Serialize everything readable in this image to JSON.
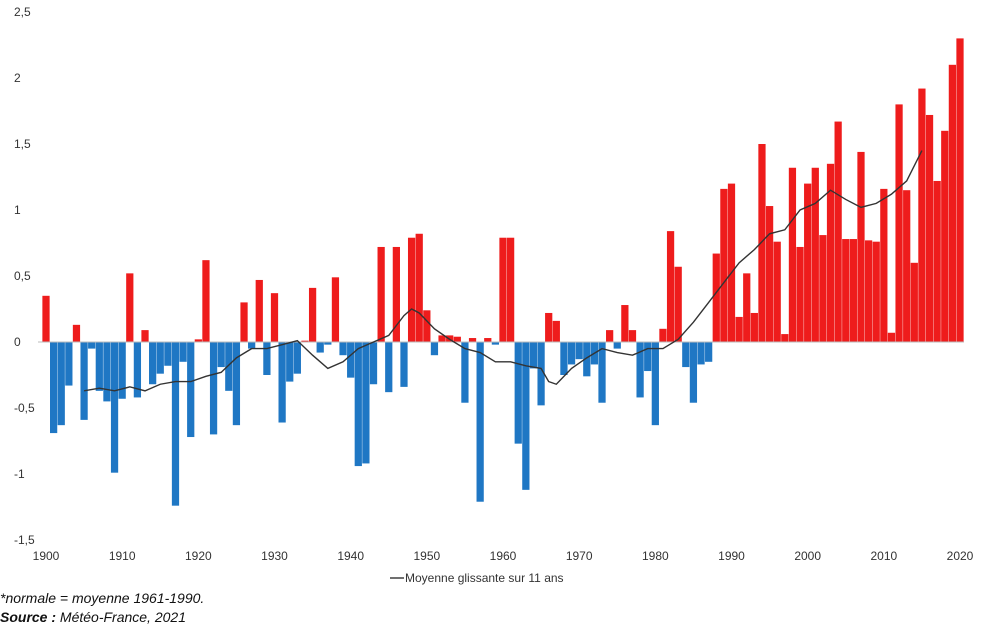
{
  "colors": {
    "positive": "#ee1c1c",
    "negative": "#1f77c4",
    "line": "#333333"
  },
  "notes": {
    "normale": "*normale = moyenne 1961-1990.",
    "source_label": "Source :",
    "source_value": " Météo-France, 2021"
  },
  "chart_data": {
    "type": "bar",
    "title": "",
    "xlabel": "",
    "ylabel": "",
    "xlim": [
      1900,
      2020
    ],
    "ylim": [
      -1.5,
      2.5
    ],
    "grid": false,
    "legend_position": "bottom",
    "x_ticks": [
      "1900",
      "1910",
      "1920",
      "1930",
      "1940",
      "1950",
      "1960",
      "1970",
      "1980",
      "1990",
      "2000",
      "2010",
      "2020"
    ],
    "y_ticks": [
      "2,5",
      "2",
      "1,5",
      "1",
      "0,5",
      "0",
      "-0,5",
      "-1",
      "-1,5"
    ],
    "years": [
      1900,
      1901,
      1902,
      1903,
      1904,
      1905,
      1906,
      1907,
      1908,
      1909,
      1910,
      1911,
      1912,
      1913,
      1914,
      1915,
      1916,
      1917,
      1918,
      1919,
      1920,
      1921,
      1922,
      1923,
      1924,
      1925,
      1926,
      1927,
      1928,
      1929,
      1930,
      1931,
      1932,
      1933,
      1934,
      1935,
      1936,
      1937,
      1938,
      1939,
      1940,
      1941,
      1942,
      1943,
      1944,
      1945,
      1946,
      1947,
      1948,
      1949,
      1950,
      1951,
      1952,
      1953,
      1954,
      1955,
      1956,
      1957,
      1958,
      1959,
      1960,
      1961,
      1962,
      1963,
      1964,
      1965,
      1966,
      1967,
      1968,
      1969,
      1970,
      1971,
      1972,
      1973,
      1974,
      1975,
      1976,
      1977,
      1978,
      1979,
      1980,
      1981,
      1982,
      1983,
      1984,
      1985,
      1986,
      1987,
      1988,
      1989,
      1990,
      1991,
      1992,
      1993,
      1994,
      1995,
      1996,
      1997,
      1998,
      1999,
      2000,
      2001,
      2002,
      2003,
      2004,
      2005,
      2006,
      2007,
      2008,
      2009,
      2010,
      2011,
      2012,
      2013,
      2014,
      2015,
      2016,
      2017,
      2018,
      2019,
      2020
    ],
    "series": [
      {
        "values": [
          0.35,
          -0.69,
          -0.63,
          -0.33,
          0.13,
          -0.59,
          -0.05,
          -0.37,
          -0.45,
          -0.99,
          -0.43,
          0.52,
          -0.42,
          0.09,
          -0.32,
          -0.24,
          -0.18,
          -1.24,
          -0.15,
          -0.72,
          0.02,
          0.62,
          -0.7,
          -0.19,
          -0.37,
          -0.63,
          0.3,
          -0.05,
          0.47,
          -0.25,
          0.37,
          -0.61,
          -0.3,
          -0.24,
          0.01,
          0.41,
          -0.08,
          -0.02,
          0.49,
          -0.1,
          -0.27,
          -0.94,
          -0.92,
          -0.32,
          0.72,
          -0.38,
          0.72,
          -0.34,
          0.79,
          0.82,
          0.24,
          -0.1,
          0.05,
          0.05,
          0.04,
          -0.46,
          0.03,
          -1.21,
          0.03,
          -0.02,
          0.79,
          0.79,
          -0.77,
          -1.12,
          -0.2,
          -0.48,
          0.22,
          0.16,
          -0.25,
          -0.17,
          -0.13,
          -0.26,
          -0.17,
          -0.46,
          0.09,
          -0.05,
          0.28,
          0.09,
          -0.42,
          -0.22,
          -0.63,
          0.1,
          0.84,
          0.57,
          -0.19,
          -0.46,
          -0.17,
          -0.15,
          0.67,
          1.16,
          1.2,
          0.19,
          0.52,
          0.22,
          1.5,
          1.03,
          0.76,
          0.06,
          1.32,
          0.72,
          1.2,
          1.32,
          0.81,
          1.35,
          1.67,
          0.78,
          0.78,
          1.44,
          0.77,
          0.76,
          1.16,
          0.07,
          1.8,
          1.15,
          0.6,
          1.92,
          1.72,
          1.22,
          1.6,
          2.1,
          2.3
        ]
      },
      {
        "name": "Moyenne glissante sur 11 ans",
        "type": "line",
        "x": [
          1905,
          1907,
          1909,
          1911,
          1913,
          1915,
          1917,
          1919,
          1921,
          1923,
          1925,
          1927,
          1929,
          1931,
          1933,
          1935,
          1937,
          1939,
          1941,
          1943,
          1945,
          1947,
          1948,
          1949,
          1951,
          1953,
          1955,
          1957,
          1959,
          1961,
          1963,
          1965,
          1966,
          1967,
          1969,
          1971,
          1973,
          1975,
          1977,
          1979,
          1981,
          1983,
          1985,
          1987,
          1989,
          1991,
          1993,
          1995,
          1997,
          1999,
          2001,
          2003,
          2005,
          2007,
          2009,
          2011,
          2013,
          2015
        ],
        "values": [
          -0.37,
          -0.35,
          -0.37,
          -0.34,
          -0.37,
          -0.32,
          -0.3,
          -0.3,
          -0.26,
          -0.23,
          -0.12,
          -0.05,
          -0.05,
          -0.02,
          0.01,
          -0.1,
          -0.2,
          -0.15,
          -0.05,
          0.0,
          0.05,
          0.2,
          0.25,
          0.22,
          0.1,
          0.02,
          -0.05,
          -0.08,
          -0.15,
          -0.15,
          -0.18,
          -0.2,
          -0.3,
          -0.32,
          -0.2,
          -0.12,
          -0.05,
          -0.08,
          -0.1,
          -0.05,
          -0.05,
          0.02,
          0.15,
          0.3,
          0.45,
          0.6,
          0.7,
          0.82,
          0.85,
          1.0,
          1.05,
          1.15,
          1.08,
          1.02,
          1.05,
          1.12,
          1.22,
          1.45
        ]
      }
    ]
  }
}
